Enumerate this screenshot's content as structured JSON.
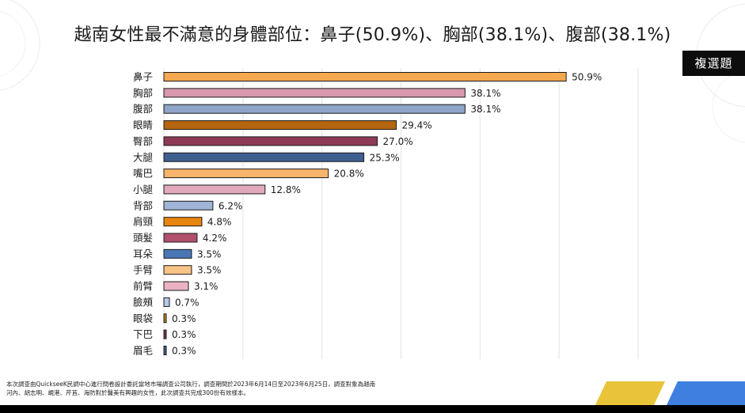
{
  "title": "越南女性最不滿意的身體部位：鼻子(50.9%)、胸部(38.1%)、腹部(38.1%)",
  "tag": "複選題",
  "footnote": {
    "line1": "本次調查由QuickseeK民調中心進行問卷設計委託當地市場調查公司執行，調查期間於2023年6月14日至2023年6月25日，調查對象為越南",
    "line2": "河內、胡志明、峴港、芹苴、海防對於醫美有興趣的女性，此次調查共完成300份有效樣本。"
  },
  "colors": {
    "accent_yellow": "#e9c43a",
    "accent_blue": "#3f7fe0"
  },
  "chart_data": {
    "type": "bar",
    "orientation": "horizontal",
    "categories": [
      "鼻子",
      "胸部",
      "腹部",
      "眼睛",
      "臀部",
      "大腿",
      "嘴巴",
      "小腿",
      "背部",
      "肩頸",
      "頭髮",
      "耳朵",
      "手臂",
      "前臂",
      "臉頰",
      "眼袋",
      "下巴",
      "眉毛"
    ],
    "values": [
      50.9,
      38.1,
      38.1,
      29.4,
      27.0,
      25.3,
      20.8,
      12.8,
      6.2,
      4.8,
      4.2,
      3.5,
      3.5,
      3.1,
      0.7,
      0.3,
      0.3,
      0.3
    ],
    "value_labels": [
      "50.9%",
      "38.1%",
      "38.1%",
      "29.4%",
      "27.0%",
      "25.3%",
      "20.8%",
      "12.8%",
      "6.2%",
      "4.8%",
      "4.2%",
      "3.5%",
      "3.5%",
      "3.1%",
      "0.7%",
      "0.3%",
      "0.3%",
      "0.3%"
    ],
    "bar_colors": [
      "#f4a94e",
      "#d898ae",
      "#8ea4c8",
      "#b5650f",
      "#8c3a55",
      "#3f5f8f",
      "#f6b56b",
      "#e2a9bc",
      "#9fb4d6",
      "#e8850f",
      "#b0506d",
      "#4a76b5",
      "#f8c385",
      "#eab2c2",
      "#b6c9ea",
      "#c27a25",
      "#7a3048",
      "#3c5a8a"
    ],
    "xlim": [
      0,
      60
    ],
    "grid": true,
    "legend": "none"
  }
}
